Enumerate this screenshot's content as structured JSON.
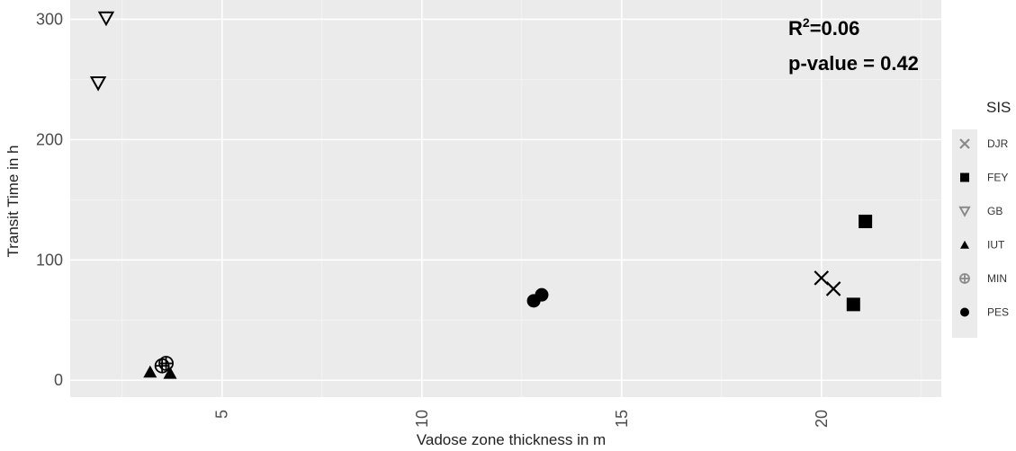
{
  "chart_data": {
    "type": "scatter",
    "xlabel": "Vadose zone thickness in m",
    "ylabel": "Transit Time in h",
    "xlim": [
      1.2,
      23.0
    ],
    "ylim": [
      -14,
      316
    ],
    "x_ticks": [
      "5",
      "10",
      "15",
      "20"
    ],
    "y_ticks": [
      "0",
      "100",
      "200",
      "300"
    ],
    "grid": true,
    "legend": {
      "title": "SIS",
      "position": "right"
    },
    "annotations": {
      "r2_main": "R",
      "r2_sup": "2",
      "r2_value": "=0.06",
      "p_value": "p-value = 0.42"
    },
    "series": [
      {
        "name": "DJR",
        "marker": "x",
        "points": [
          [
            20.0,
            85
          ],
          [
            20.3,
            76
          ]
        ]
      },
      {
        "name": "FEY",
        "marker": "square",
        "points": [
          [
            20.8,
            63
          ],
          [
            21.1,
            132
          ]
        ]
      },
      {
        "name": "GB",
        "marker": "triangle-down-open",
        "points": [
          [
            2.1,
            301
          ],
          [
            1.9,
            247
          ]
        ]
      },
      {
        "name": "IUT",
        "marker": "triangle-filled",
        "points": [
          [
            3.2,
            7
          ],
          [
            3.7,
            6
          ]
        ]
      },
      {
        "name": "MIN",
        "marker": "circle-cross",
        "points": [
          [
            3.6,
            14
          ],
          [
            3.5,
            12
          ]
        ]
      },
      {
        "name": "PES",
        "marker": "circle-filled",
        "points": [
          [
            12.8,
            66
          ],
          [
            13.0,
            71
          ]
        ]
      }
    ]
  }
}
